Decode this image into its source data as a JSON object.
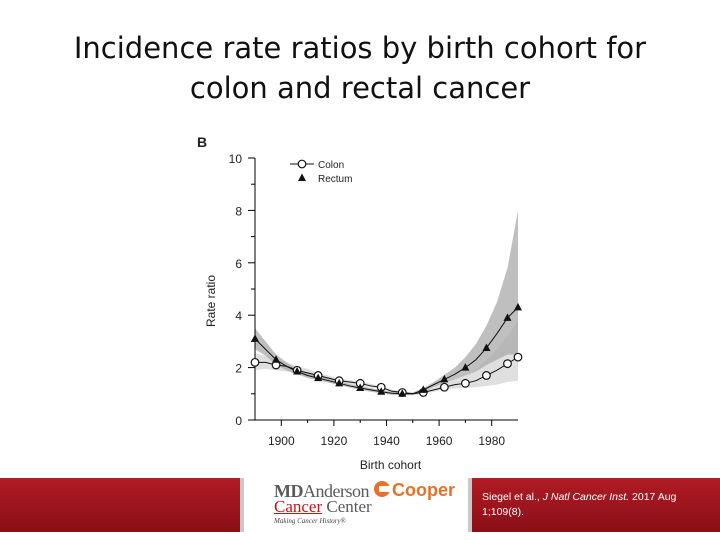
{
  "slide": {
    "title_line1": "Incidence rate ratios by birth cohort for",
    "title_line2": "colon and rectal cancer"
  },
  "chart_data": {
    "type": "line",
    "panel_label": "B",
    "xlabel": "Birth cohort",
    "ylabel": "Rate ratio",
    "xlim": [
      1890,
      1990
    ],
    "ylim": [
      0,
      10
    ],
    "x_ticks": [
      1900,
      1920,
      1940,
      1960,
      1980
    ],
    "y_ticks": [
      0,
      2,
      4,
      6,
      8,
      10
    ],
    "legend_position": "top-left",
    "series": [
      {
        "name": "Colon",
        "marker": "open-circle",
        "x": [
          1890,
          1894,
          1898,
          1902,
          1906,
          1910,
          1914,
          1918,
          1922,
          1926,
          1930,
          1934,
          1938,
          1942,
          1946,
          1950,
          1954,
          1958,
          1962,
          1966,
          1970,
          1974,
          1978,
          1982,
          1986,
          1990
        ],
        "values": [
          2.2,
          2.2,
          2.1,
          2.05,
          1.9,
          1.8,
          1.7,
          1.6,
          1.5,
          1.45,
          1.4,
          1.3,
          1.25,
          1.1,
          1.05,
          1.0,
          1.05,
          1.15,
          1.25,
          1.35,
          1.4,
          1.5,
          1.7,
          1.9,
          2.15,
          2.4
        ],
        "ci_lower": [
          1.9,
          1.95,
          1.9,
          1.85,
          1.75,
          1.65,
          1.6,
          1.5,
          1.42,
          1.37,
          1.32,
          1.24,
          1.2,
          1.05,
          1.0,
          0.97,
          1.0,
          1.08,
          1.15,
          1.2,
          1.22,
          1.25,
          1.3,
          1.35,
          1.45,
          1.5
        ],
        "ci_upper": [
          2.55,
          2.45,
          2.3,
          2.2,
          2.05,
          1.95,
          1.8,
          1.7,
          1.58,
          1.52,
          1.48,
          1.38,
          1.3,
          1.15,
          1.1,
          1.03,
          1.1,
          1.23,
          1.38,
          1.55,
          1.7,
          1.9,
          2.3,
          2.7,
          3.2,
          3.8
        ]
      },
      {
        "name": "Rectum",
        "marker": "filled-triangle",
        "x": [
          1890,
          1894,
          1898,
          1902,
          1906,
          1910,
          1914,
          1918,
          1922,
          1926,
          1930,
          1934,
          1938,
          1942,
          1946,
          1950,
          1954,
          1958,
          1962,
          1966,
          1970,
          1974,
          1978,
          1982,
          1986,
          1990
        ],
        "values": [
          3.1,
          2.7,
          2.3,
          2.05,
          1.85,
          1.7,
          1.6,
          1.5,
          1.4,
          1.3,
          1.22,
          1.15,
          1.08,
          1.02,
          1.0,
          1.0,
          1.15,
          1.35,
          1.55,
          1.75,
          2.0,
          2.3,
          2.75,
          3.3,
          3.9,
          4.3
        ],
        "ci_lower": [
          2.7,
          2.45,
          2.1,
          1.9,
          1.75,
          1.6,
          1.52,
          1.42,
          1.33,
          1.24,
          1.15,
          1.08,
          1.02,
          0.96,
          0.95,
          0.95,
          1.08,
          1.25,
          1.4,
          1.55,
          1.7,
          1.85,
          2.1,
          2.3,
          2.5,
          2.5
        ],
        "ci_upper": [
          3.5,
          3.0,
          2.5,
          2.2,
          1.95,
          1.8,
          1.68,
          1.58,
          1.48,
          1.37,
          1.3,
          1.22,
          1.15,
          1.08,
          1.05,
          1.05,
          1.22,
          1.45,
          1.72,
          2.0,
          2.4,
          2.9,
          3.6,
          4.5,
          5.8,
          8.0
        ]
      }
    ]
  },
  "footer": {
    "logo_line1_bold": "MD",
    "logo_line1_rest": "Anderson",
    "logo_line2_underlined": "Cancer",
    "logo_line2_rest": " Center",
    "logo_tagline": "Making Cancer History®",
    "partner_logo": "Cooper",
    "citation_authors": "Siegel et al.,",
    "citation_journal": "J Natl Cancer Inst.",
    "citation_date": "2017 Aug",
    "citation_volume": "1;109(8).",
    "accent_color": "#b11b24",
    "partner_color": "#e8702a"
  }
}
